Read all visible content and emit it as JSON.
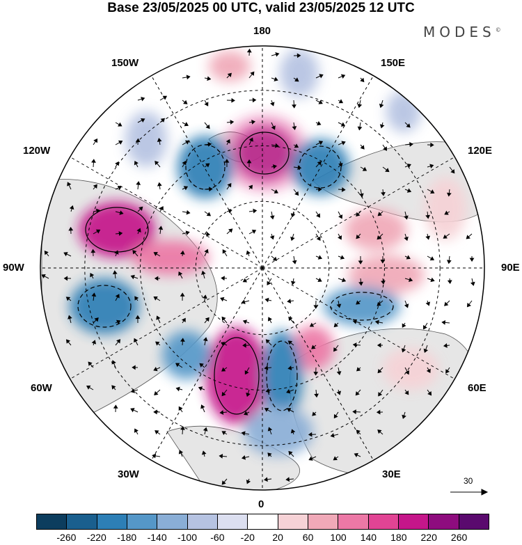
{
  "title": "Base 23/05/2025 00 UTC, valid 23/05/2025 12 UTC",
  "brand": {
    "name": "MODES",
    "mark": "©"
  },
  "longitude_labels": {
    "top": "180",
    "bottom": "0",
    "left": "90W",
    "right": "90E",
    "upper_left_1": "150W",
    "upper_left_2": "120W",
    "upper_right_1": "150E",
    "upper_right_2": "120E",
    "lower_left_1": "60W",
    "lower_left_2": "30W",
    "lower_right_1": "60E",
    "lower_right_2": "30E"
  },
  "reference_vector": {
    "label": "30"
  },
  "colorbar": {
    "ticks": [
      "-260",
      "-220",
      "-180",
      "-140",
      "-100",
      "-60",
      "-20",
      "20",
      "60",
      "100",
      "140",
      "180",
      "220",
      "260"
    ],
    "colors": [
      "#0c3d5e",
      "#1a5f8e",
      "#2d7fb6",
      "#5597c8",
      "#8aaed6",
      "#b6c3e2",
      "#dcdff0",
      "#ffffff",
      "#f6d2d6",
      "#f0a9b8",
      "#ec78a6",
      "#e14494",
      "#c5168a",
      "#8e0c7e",
      "#5a0a6e"
    ]
  },
  "colors": {
    "land_fill": "#e6e6e6",
    "ocean_fill": "#ffffff",
    "contour": "#000000"
  }
}
